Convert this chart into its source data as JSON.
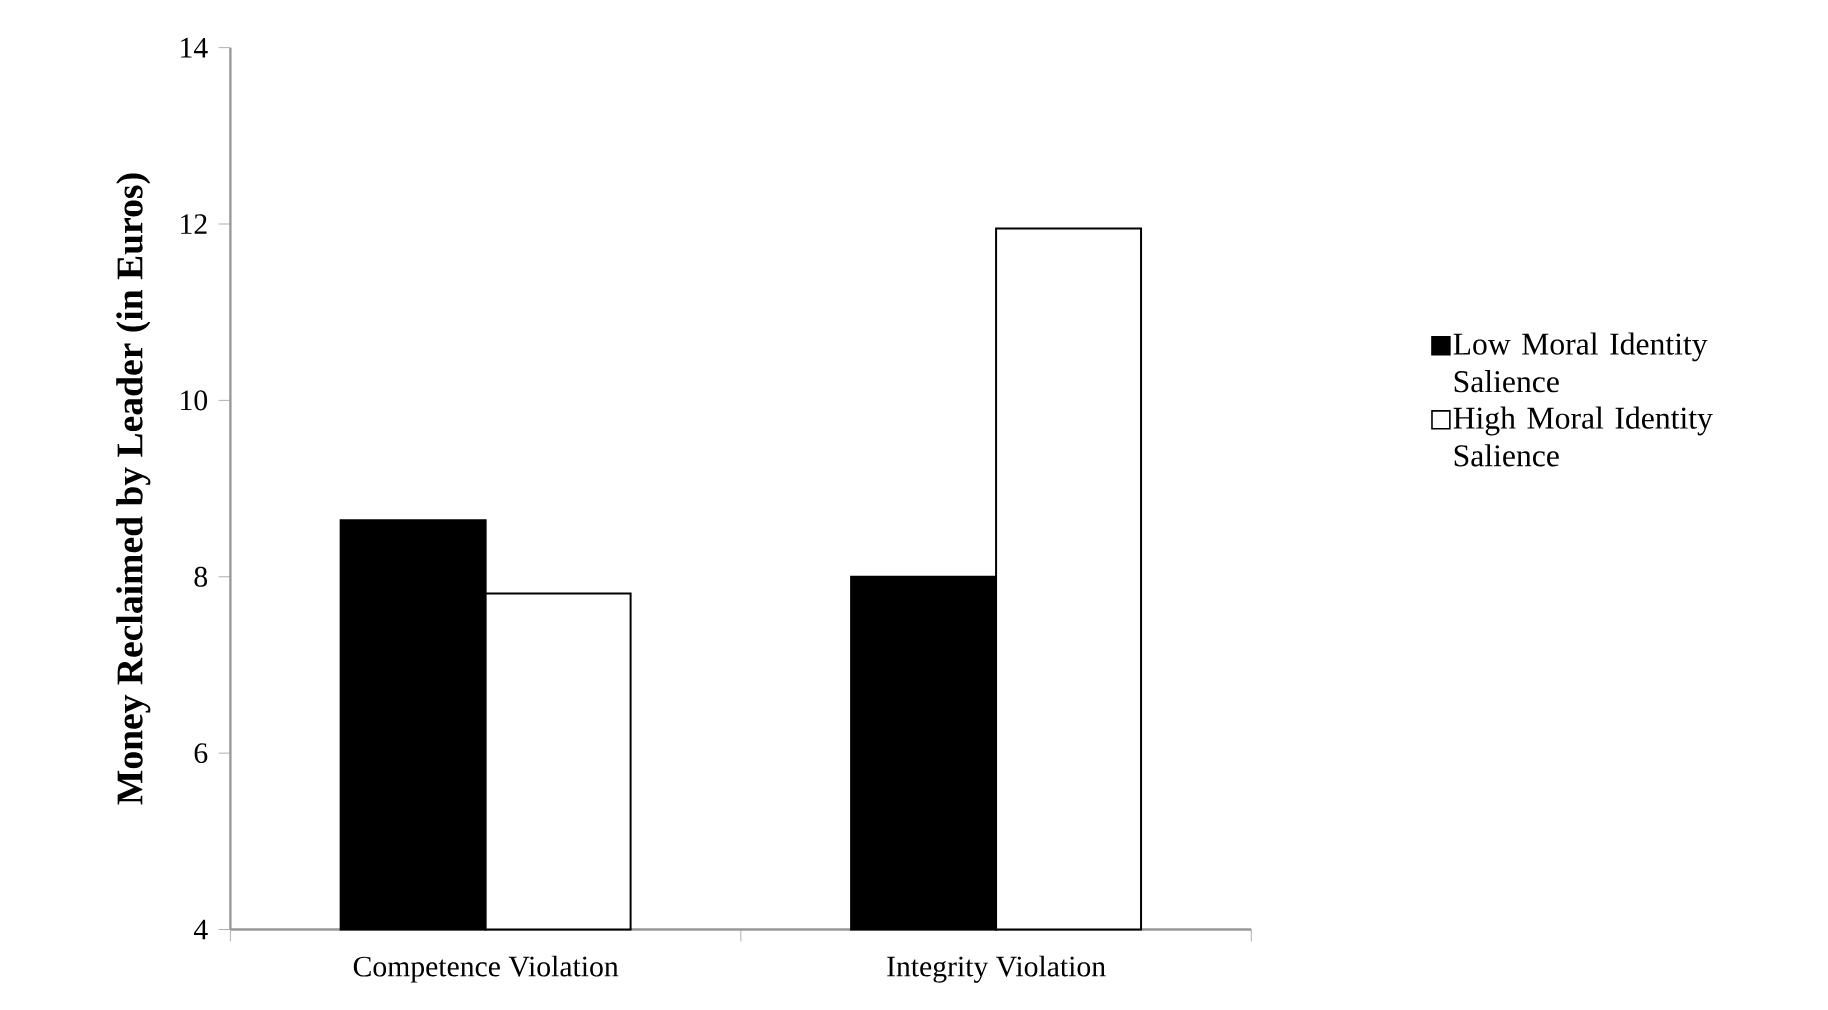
{
  "chart_data": {
    "type": "bar",
    "ylabel": "Money Reclaimed by Leader (in Euros)",
    "categories": [
      "Competence Violation",
      "Integrity Violation"
    ],
    "series": [
      {
        "name": "Low Moral Identity Salience",
        "color": "#000000",
        "values": [
          8.64,
          8.0
        ]
      },
      {
        "name": "High Moral Identity Salience",
        "color": "#ffffff",
        "values": [
          7.81,
          11.95
        ]
      }
    ],
    "ylim": [
      4,
      14
    ],
    "yticks": [
      4,
      6,
      8,
      10,
      12,
      14
    ],
    "legend": "right",
    "grid": false
  }
}
